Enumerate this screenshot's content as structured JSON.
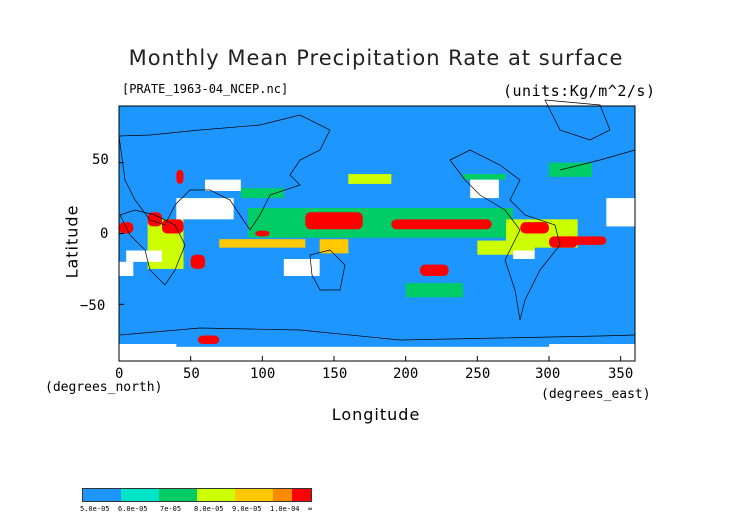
{
  "chart_data": {
    "type": "heatmap",
    "title": "Monthly Mean Precipitation Rate at surface",
    "source_label": "[PRATE_1963-04_NCEP.nc]",
    "units_label": "(units:Kg/m^2/s)",
    "xlabel": "Longitude",
    "ylabel": "Latitude",
    "x_unit_label": "(degrees_east)",
    "y_unit_label": "(degrees_north)",
    "xlim": [
      0,
      360
    ],
    "ylim": [
      -90,
      90
    ],
    "x_ticks": [
      0,
      50,
      100,
      150,
      200,
      250,
      300,
      350
    ],
    "y_ticks": [
      50,
      0,
      -50
    ],
    "x_tick_labels": [
      "0",
      "50",
      "100",
      "150",
      "200",
      "250",
      "300",
      "350"
    ],
    "y_tick_labels": [
      "50",
      "0",
      "−50"
    ],
    "colorbar": {
      "levels": [
        "5.0e-05",
        "6.0e-05",
        "7e-05",
        "8.0e-05",
        "9.0e-05",
        "1.0e-04",
        "∞"
      ],
      "colors": [
        "#1e96ff",
        "#00e5c8",
        "#00cc66",
        "#ccff00",
        "#ffc800",
        "#ff8c00",
        "#ff0000"
      ]
    },
    "background_color": "#1e96ff",
    "missing_color": "#ffffff",
    "regions": [
      {
        "lon": [
          0,
          360
        ],
        "lat": [
          -90,
          90
        ],
        "level": 0
      },
      {
        "lon": [
          90,
          275
        ],
        "lat": [
          -3,
          18
        ],
        "level": 2
      },
      {
        "lon": [
          130,
          170
        ],
        "lat": [
          3,
          15
        ],
        "level": 6
      },
      {
        "lon": [
          190,
          260
        ],
        "lat": [
          3,
          10
        ],
        "level": 6
      },
      {
        "lon": [
          140,
          160
        ],
        "lat": [
          -14,
          -4
        ],
        "level": 4
      },
      {
        "lon": [
          20,
          45
        ],
        "lat": [
          -25,
          10
        ],
        "level": 3
      },
      {
        "lon": [
          30,
          45
        ],
        "lat": [
          0,
          10
        ],
        "level": 6
      },
      {
        "lon": [
          50,
          60
        ],
        "lat": [
          -25,
          -15
        ],
        "level": 6
      },
      {
        "lon": [
          0,
          10
        ],
        "lat": [
          0,
          8
        ],
        "level": 6
      },
      {
        "lon": [
          20,
          30
        ],
        "lat": [
          5,
          15
        ],
        "level": 6
      },
      {
        "lon": [
          270,
          320
        ],
        "lat": [
          -10,
          10
        ],
        "level": 3
      },
      {
        "lon": [
          280,
          300
        ],
        "lat": [
          0,
          8
        ],
        "level": 6
      },
      {
        "lon": [
          300,
          320
        ],
        "lat": [
          -10,
          -2
        ],
        "level": 6
      },
      {
        "lon": [
          310,
          340
        ],
        "lat": [
          -8,
          -2
        ],
        "level": 6
      },
      {
        "lon": [
          40,
          45
        ],
        "lat": [
          35,
          45
        ],
        "level": 6
      },
      {
        "lon": [
          55,
          70
        ],
        "lat": [
          -78,
          -72
        ],
        "level": 6
      },
      {
        "lon": [
          210,
          230
        ],
        "lat": [
          -30,
          -22
        ],
        "level": 6
      },
      {
        "lon": [
          70,
          130
        ],
        "lat": [
          -10,
          -4
        ],
        "level": 4
      },
      {
        "lon": [
          95,
          105
        ],
        "lat": [
          -2,
          2
        ],
        "level": 6
      },
      {
        "lon": [
          250,
          290
        ],
        "lat": [
          -15,
          -5
        ],
        "level": 3
      },
      {
        "lon": [
          240,
          270
        ],
        "lat": [
          38,
          42
        ],
        "level": 2
      },
      {
        "lon": [
          160,
          190
        ],
        "lat": [
          35,
          42
        ],
        "level": 3
      },
      {
        "lon": [
          300,
          330
        ],
        "lat": [
          40,
          50
        ],
        "level": 2
      },
      {
        "lon": [
          200,
          240
        ],
        "lat": [
          -45,
          -35
        ],
        "level": 2
      },
      {
        "lon": [
          85,
          115
        ],
        "lat": [
          25,
          32
        ],
        "level": 2
      },
      {
        "lon": [
          0,
          360
        ],
        "lat": [
          -90,
          -80
        ],
        "missing": true
      },
      {
        "lon": [
          0,
          10
        ],
        "lat": [
          -30,
          -20
        ],
        "missing": true
      },
      {
        "lon": [
          5,
          30
        ],
        "lat": [
          -20,
          -12
        ],
        "missing": true
      },
      {
        "lon": [
          40,
          80
        ],
        "lat": [
          10,
          25
        ],
        "missing": true
      },
      {
        "lon": [
          60,
          85
        ],
        "lat": [
          30,
          38
        ],
        "missing": true
      },
      {
        "lon": [
          115,
          140
        ],
        "lat": [
          -30,
          -18
        ],
        "missing": true
      },
      {
        "lon": [
          245,
          265
        ],
        "lat": [
          25,
          38
        ],
        "missing": true
      },
      {
        "lon": [
          275,
          290
        ],
        "lat": [
          -18,
          -12
        ],
        "missing": true
      },
      {
        "lon": [
          340,
          360
        ],
        "lat": [
          5,
          25
        ],
        "missing": true
      },
      {
        "lon": [
          0,
          40
        ],
        "lat": [
          -85,
          -78
        ],
        "missing": true
      },
      {
        "lon": [
          300,
          360
        ],
        "lat": [
          -85,
          -78
        ],
        "missing": true
      }
    ]
  }
}
